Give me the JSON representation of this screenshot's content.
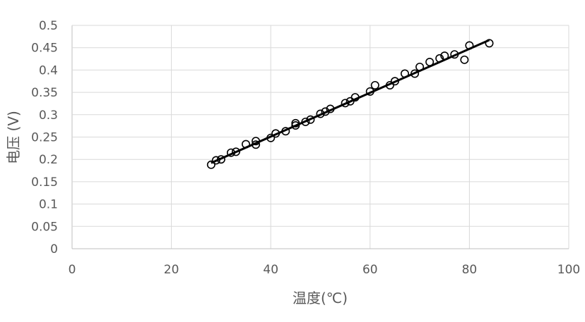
{
  "chart_data": {
    "type": "scatter",
    "xlabel": "温度(℃)",
    "ylabel": "电压 (V)",
    "xlim": [
      0,
      100
    ],
    "ylim": [
      0,
      0.5
    ],
    "x_ticks": [
      0,
      20,
      40,
      60,
      80,
      100
    ],
    "y_ticks": [
      0,
      0.05,
      0.1,
      0.15,
      0.2,
      0.25,
      0.3,
      0.35,
      0.4,
      0.45,
      0.5
    ],
    "x_tick_labels": [
      "0",
      "20",
      "40",
      "60",
      "80",
      "100"
    ],
    "y_tick_labels": [
      "0",
      "0.05",
      "0.1",
      "0.15",
      "0.2",
      "0.25",
      "0.3",
      "0.35",
      "0.4",
      "0.45",
      "0.5"
    ],
    "grid": true,
    "legend": "none",
    "marker": "hollow-circle",
    "series": [
      {
        "points": [
          [
            28,
            0.188
          ],
          [
            29,
            0.198
          ],
          [
            30,
            0.2
          ],
          [
            32,
            0.215
          ],
          [
            33,
            0.217
          ],
          [
            35,
            0.234
          ],
          [
            37,
            0.233
          ],
          [
            37,
            0.241
          ],
          [
            40,
            0.248
          ],
          [
            41,
            0.258
          ],
          [
            43,
            0.263
          ],
          [
            45,
            0.276
          ],
          [
            45,
            0.281
          ],
          [
            47,
            0.284
          ],
          [
            48,
            0.289
          ],
          [
            50,
            0.302
          ],
          [
            51,
            0.307
          ],
          [
            52,
            0.313
          ],
          [
            55,
            0.326
          ],
          [
            56,
            0.33
          ],
          [
            57,
            0.339
          ],
          [
            60,
            0.352
          ],
          [
            61,
            0.366
          ],
          [
            64,
            0.366
          ],
          [
            65,
            0.375
          ],
          [
            67,
            0.392
          ],
          [
            69,
            0.392
          ],
          [
            70,
            0.407
          ],
          [
            72,
            0.418
          ],
          [
            74,
            0.426
          ],
          [
            75,
            0.432
          ],
          [
            77,
            0.435
          ],
          [
            79,
            0.423
          ],
          [
            80,
            0.455
          ],
          [
            84,
            0.46
          ]
        ]
      }
    ],
    "trendline": {
      "type": "linear",
      "from": [
        28,
        0.192
      ],
      "to": [
        84,
        0.467
      ]
    }
  }
}
